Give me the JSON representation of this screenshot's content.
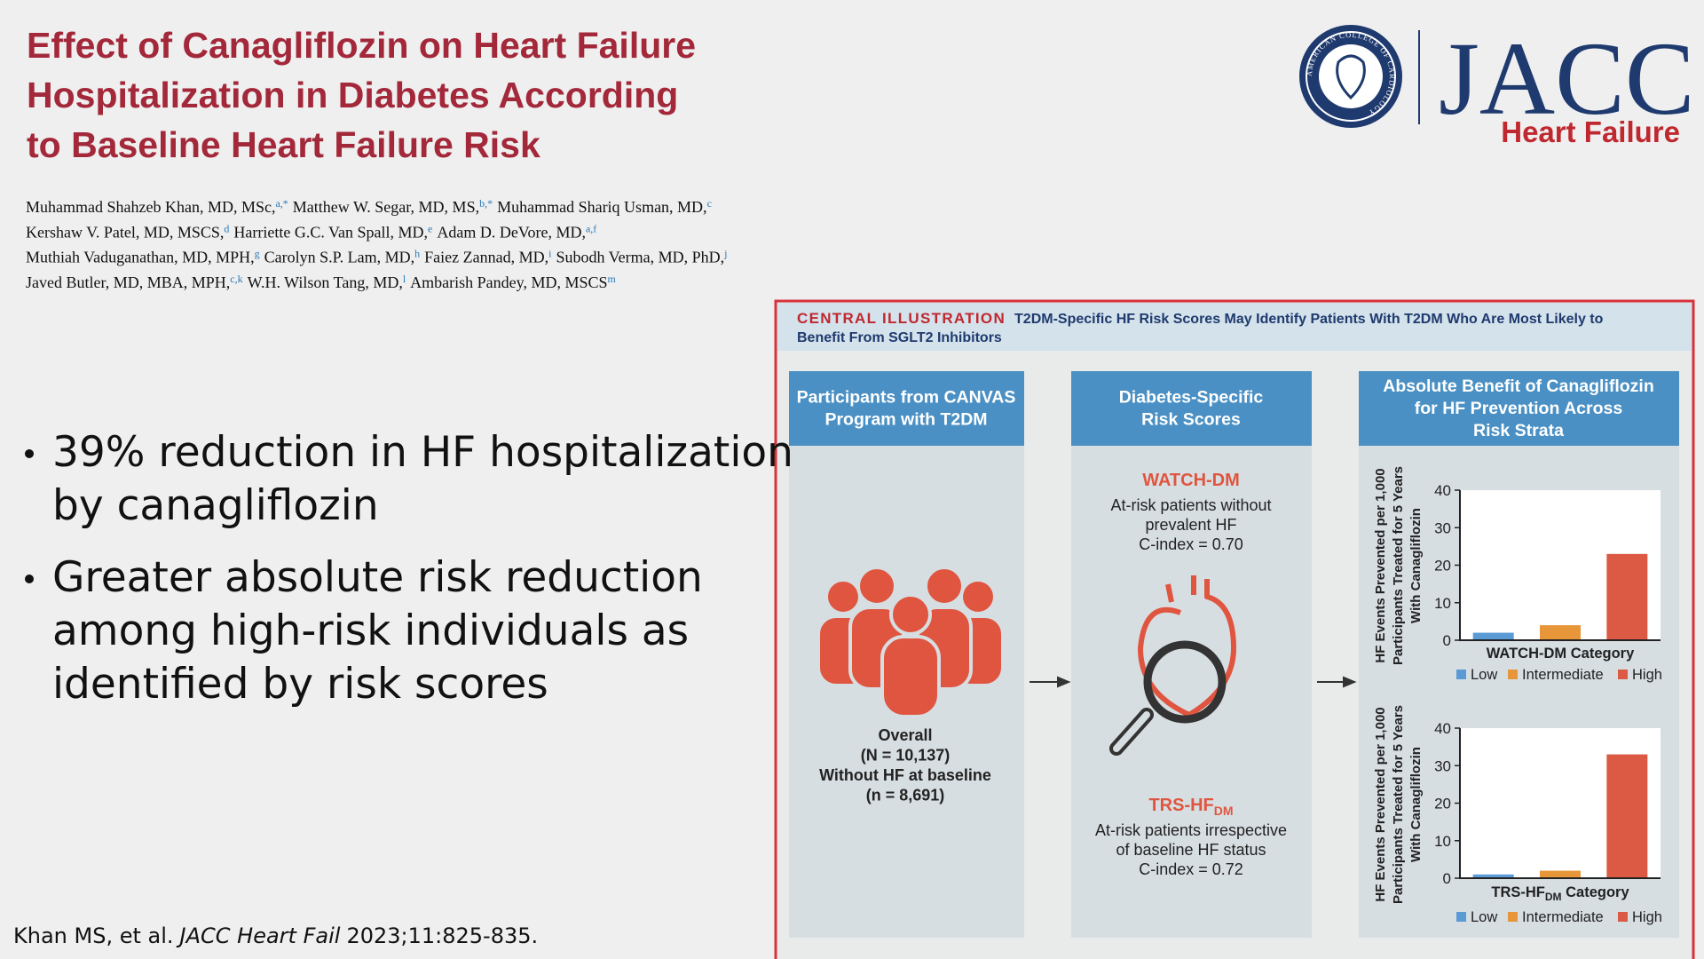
{
  "header": {
    "title_lines": [
      "Effect of Canagliflozin on Heart Failure",
      "Hospitalization in Diabetes According",
      "to Baseline Heart Failure Risk"
    ],
    "authors": [
      [
        {
          "name": "Muhammad Shahzeb Khan, MD, MSc,",
          "sup": "a,*"
        },
        {
          "name": "Matthew W. Segar, MD, MS,",
          "sup": "b,*"
        },
        {
          "name": "Muhammad Shariq Usman, MD,",
          "sup": "c"
        }
      ],
      [
        {
          "name": "Kershaw V. Patel, MD, MSCS,",
          "sup": "d"
        },
        {
          "name": "Harriette G.C. Van Spall, MD,",
          "sup": "e"
        },
        {
          "name": "Adam D. DeVore, MD,",
          "sup": "a,f"
        }
      ],
      [
        {
          "name": "Muthiah Vaduganathan, MD, MPH,",
          "sup": "g"
        },
        {
          "name": "Carolyn S.P. Lam, MD,",
          "sup": "h"
        },
        {
          "name": "Faiez Zannad, MD,",
          "sup": "i"
        },
        {
          "name": "Subodh Verma, MD, PhD,",
          "sup": "j"
        }
      ],
      [
        {
          "name": "Javed Butler, MD, MBA, MPH,",
          "sup": "c,k"
        },
        {
          "name": "W.H. Wilson Tang, MD,",
          "sup": "l"
        },
        {
          "name": "Ambarish Pandey, MD, MSCS",
          "sup": "m"
        }
      ]
    ]
  },
  "logo": {
    "journal": "JACC",
    "subtitle": "Heart Failure",
    "seal": "AMERICAN COLLEGE OF CARDIOLOGY"
  },
  "bullets": [
    [
      "39% reduction in HF hospitalization",
      "by canagliflozin"
    ],
    [
      "Greater absolute risk reduction",
      "among high-risk individuals as",
      "identified by risk scores"
    ]
  ],
  "citation": {
    "authors": "Khan MS, et al.",
    "journal": "JACC Heart Fail",
    "rest": "2023;11:825-835."
  },
  "illustration": {
    "label": "CENTRAL ILLUSTRATION",
    "title_lines": [
      "T2DM-Specific HF Risk Scores May Identify Patients With T2DM Who Are Most Likely to",
      "Benefit From SGLT2 Inhibitors"
    ],
    "columns": [
      {
        "header": [
          "Participants from CANVAS",
          "Program with T2DM"
        ],
        "text": [
          "Overall",
          "(N = 10,137)",
          "Without HF at baseline",
          "(n = 8,691)"
        ]
      },
      {
        "header": [
          "Diabetes-Specific",
          "Risk Scores"
        ],
        "scores": [
          {
            "name": "WATCH-DM",
            "text": [
              "At-risk patients without",
              "prevalent HF",
              "C-index = 0.70"
            ]
          },
          {
            "name": "TRS-HF",
            "sub": "DM",
            "text": [
              "At-risk patients irrespective",
              "of baseline HF status",
              "C-index = 0.72"
            ]
          }
        ]
      },
      {
        "header": [
          "Absolute Benefit of Canagliflozin",
          "for HF Prevention Across",
          "Risk Strata"
        ]
      }
    ],
    "charts": [
      {
        "type": "bar",
        "ylabel": [
          "HF Events Prevented per 1,000",
          "Participants Treated for 5 Years",
          "With Canagliflozin"
        ],
        "xlabel": {
          "main": "WATCH-DM Category"
        },
        "categories": [
          "Low",
          "Intermediate",
          "High"
        ],
        "values": [
          2,
          4,
          23
        ],
        "colors": [
          "#5b9bd5",
          "#e8963a",
          "#dc5a43"
        ],
        "ylim": [
          0,
          40
        ],
        "yticks": [
          0,
          10,
          20,
          30,
          40
        ]
      },
      {
        "type": "bar",
        "ylabel": [
          "HF Events Prevented per 1,000",
          "Participants Treated for 5 Years",
          "With Canagliflozin"
        ],
        "xlabel": {
          "main": "TRS-HF",
          "sub": "DM",
          "rest": " Category"
        },
        "categories": [
          "Low",
          "Intermediate",
          "High"
        ],
        "values": [
          1,
          2,
          33
        ],
        "colors": [
          "#5b9bd5",
          "#e8963a",
          "#dc5a43"
        ],
        "ylim": [
          0,
          40
        ],
        "yticks": [
          0,
          10,
          20,
          30,
          40
        ]
      }
    ]
  }
}
